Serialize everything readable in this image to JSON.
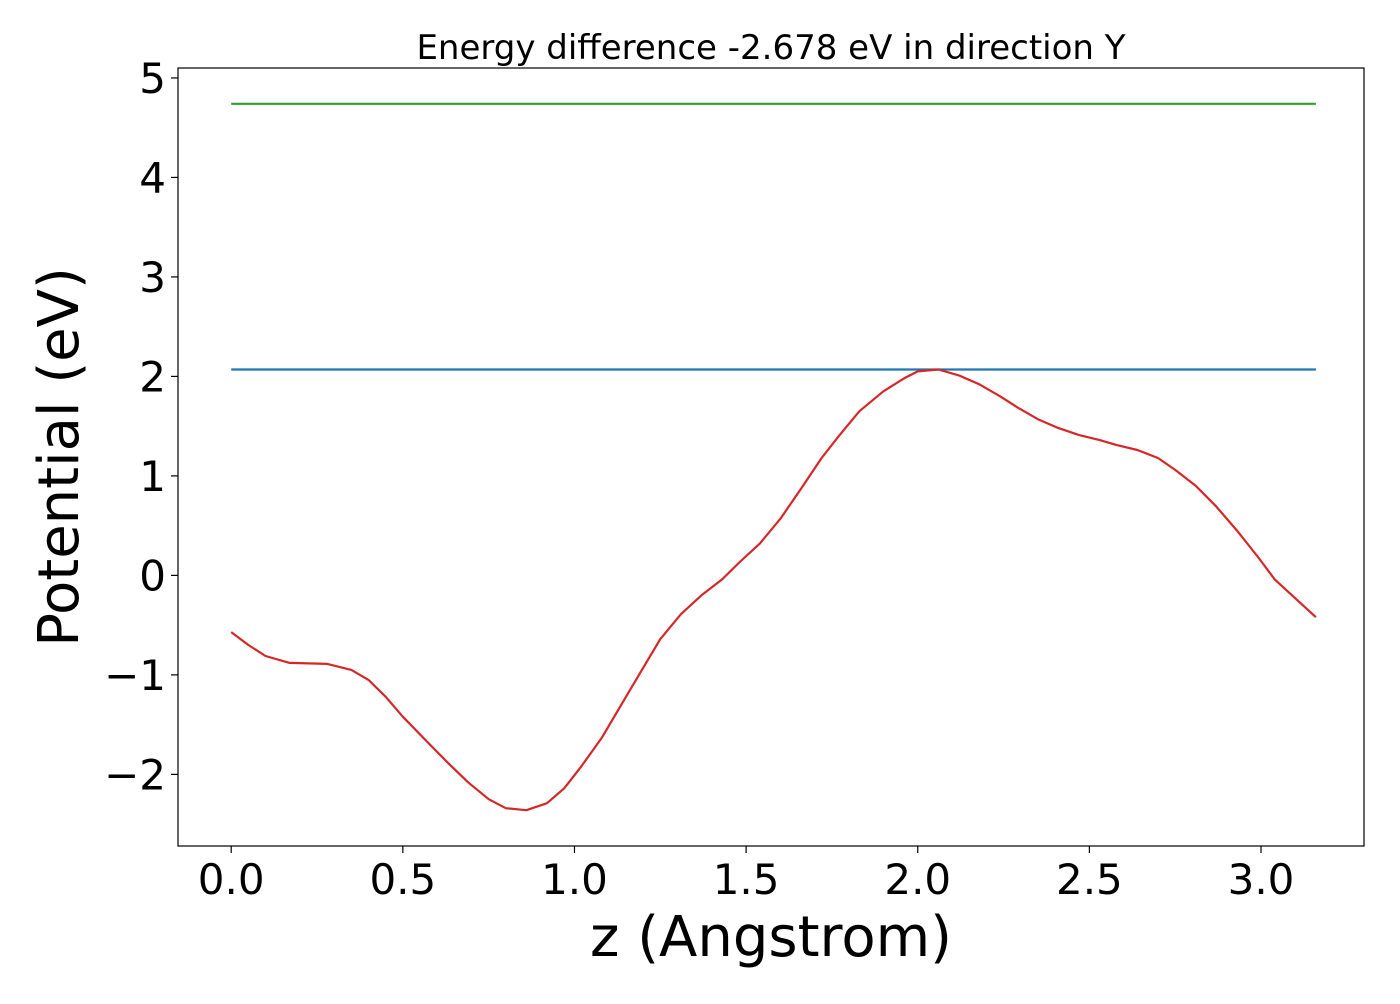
{
  "chart_data": {
    "type": "line",
    "title": "Energy difference -2.678 eV in direction Y",
    "xlabel": "z (Angstrom)",
    "ylabel": "Potential (eV)",
    "xlim": [
      -0.155,
      3.3
    ],
    "ylim": [
      -2.72,
      5.1
    ],
    "grid": false,
    "x_ticks": [
      0.0,
      0.5,
      1.0,
      1.5,
      2.0,
      2.5,
      3.0
    ],
    "x_tick_labels": [
      "0.0",
      "0.5",
      "1.0",
      "1.5",
      "2.0",
      "2.5",
      "3.0"
    ],
    "y_ticks": [
      -2,
      -1,
      0,
      1,
      2,
      3,
      4,
      5
    ],
    "y_tick_labels": [
      "−2",
      "−1",
      "0",
      "1",
      "2",
      "3",
      "4",
      "5"
    ],
    "series": [
      {
        "color": "#2ca02c",
        "x": [
          0.0,
          3.16
        ],
        "y": [
          4.74,
          4.74
        ]
      },
      {
        "color": "#1f77b4",
        "x": [
          0.0,
          3.16
        ],
        "y": [
          2.07,
          2.07
        ]
      },
      {
        "color": "#d62728",
        "x": [
          0.0,
          0.05,
          0.1,
          0.17,
          0.28,
          0.35,
          0.4,
          0.45,
          0.5,
          0.57,
          0.63,
          0.69,
          0.75,
          0.8,
          0.86,
          0.92,
          0.97,
          1.02,
          1.08,
          1.14,
          1.2,
          1.25,
          1.31,
          1.37,
          1.43,
          1.48,
          1.54,
          1.6,
          1.66,
          1.72,
          1.77,
          1.83,
          1.9,
          1.96,
          2.0,
          2.06,
          2.12,
          2.18,
          2.24,
          2.29,
          2.35,
          2.41,
          2.47,
          2.53,
          2.58,
          2.64,
          2.7,
          2.75,
          2.81,
          2.87,
          2.93,
          2.99,
          3.04,
          3.1,
          3.16
        ],
        "y": [
          -0.57,
          -0.7,
          -0.81,
          -0.88,
          -0.89,
          -0.95,
          -1.05,
          -1.22,
          -1.42,
          -1.67,
          -1.88,
          -2.08,
          -2.25,
          -2.34,
          -2.36,
          -2.29,
          -2.14,
          -1.92,
          -1.63,
          -1.28,
          -0.93,
          -0.64,
          -0.39,
          -0.2,
          -0.04,
          0.13,
          0.32,
          0.57,
          0.87,
          1.18,
          1.4,
          1.65,
          1.85,
          1.98,
          2.05,
          2.07,
          2.01,
          1.92,
          1.8,
          1.69,
          1.57,
          1.48,
          1.41,
          1.36,
          1.31,
          1.26,
          1.18,
          1.06,
          0.9,
          0.69,
          0.45,
          0.19,
          -0.04,
          -0.23,
          -0.42
        ]
      }
    ]
  }
}
